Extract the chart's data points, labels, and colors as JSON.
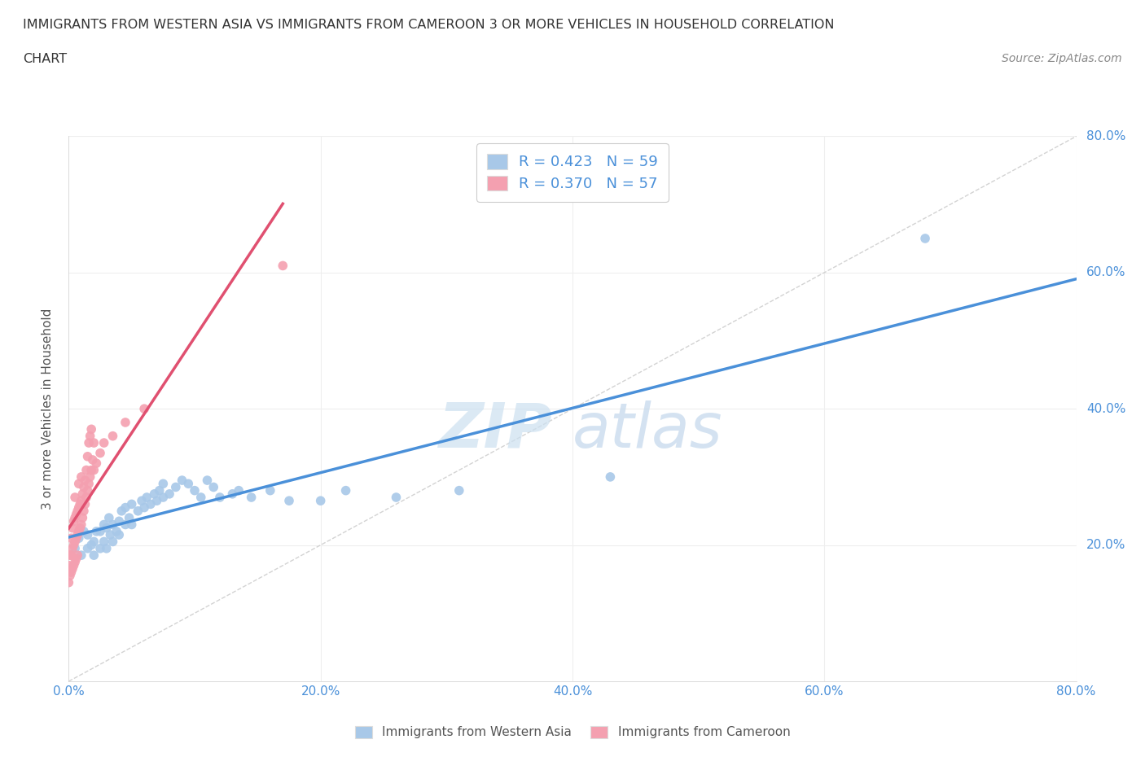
{
  "title_line1": "IMMIGRANTS FROM WESTERN ASIA VS IMMIGRANTS FROM CAMEROON 3 OR MORE VEHICLES IN HOUSEHOLD CORRELATION",
  "title_line2": "CHART",
  "source_text": "Source: ZipAtlas.com",
  "ylabel": "3 or more Vehicles in Household",
  "xlim": [
    0,
    0.8
  ],
  "ylim": [
    0,
    0.8
  ],
  "r_western_asia": 0.423,
  "n_western_asia": 59,
  "r_cameroon": 0.37,
  "n_cameroon": 57,
  "blue_color": "#a8c8e8",
  "blue_line_color": "#4a90d9",
  "pink_color": "#f4a0b0",
  "pink_line_color": "#e05070",
  "diagonal_color": "#c8c8c8",
  "tick_color": "#4a90d9",
  "ylabel_color": "#555555",
  "watermark_zip_color": "#cce0f0",
  "watermark_atlas_color": "#b8d0e8",
  "grid_color": "#eeeeee",
  "title_color": "#333333",
  "source_color": "#888888",
  "legend_text_color": "#4a90d9",
  "bottom_legend_text_color": "#555555",
  "western_asia_x": [
    0.005,
    0.008,
    0.01,
    0.012,
    0.015,
    0.015,
    0.018,
    0.02,
    0.02,
    0.022,
    0.025,
    0.025,
    0.028,
    0.028,
    0.03,
    0.03,
    0.032,
    0.033,
    0.035,
    0.035,
    0.038,
    0.04,
    0.04,
    0.042,
    0.045,
    0.045,
    0.048,
    0.05,
    0.05,
    0.055,
    0.058,
    0.06,
    0.062,
    0.065,
    0.068,
    0.07,
    0.072,
    0.075,
    0.075,
    0.08,
    0.085,
    0.09,
    0.095,
    0.1,
    0.105,
    0.11,
    0.115,
    0.12,
    0.13,
    0.135,
    0.145,
    0.16,
    0.175,
    0.2,
    0.22,
    0.26,
    0.31,
    0.43,
    0.68
  ],
  "western_asia_y": [
    0.195,
    0.21,
    0.185,
    0.22,
    0.195,
    0.215,
    0.2,
    0.185,
    0.205,
    0.22,
    0.195,
    0.22,
    0.205,
    0.23,
    0.195,
    0.225,
    0.24,
    0.215,
    0.205,
    0.23,
    0.22,
    0.215,
    0.235,
    0.25,
    0.23,
    0.255,
    0.24,
    0.23,
    0.26,
    0.25,
    0.265,
    0.255,
    0.27,
    0.26,
    0.275,
    0.265,
    0.28,
    0.27,
    0.29,
    0.275,
    0.285,
    0.295,
    0.29,
    0.28,
    0.27,
    0.295,
    0.285,
    0.27,
    0.275,
    0.28,
    0.27,
    0.28,
    0.265,
    0.265,
    0.28,
    0.27,
    0.28,
    0.3,
    0.65
  ],
  "cameroon_x": [
    0.0,
    0.0,
    0.001,
    0.001,
    0.002,
    0.002,
    0.002,
    0.003,
    0.003,
    0.003,
    0.004,
    0.004,
    0.004,
    0.005,
    0.005,
    0.005,
    0.005,
    0.006,
    0.006,
    0.006,
    0.007,
    0.007,
    0.007,
    0.008,
    0.008,
    0.008,
    0.009,
    0.009,
    0.01,
    0.01,
    0.01,
    0.011,
    0.011,
    0.012,
    0.012,
    0.013,
    0.013,
    0.014,
    0.014,
    0.015,
    0.015,
    0.016,
    0.016,
    0.017,
    0.017,
    0.018,
    0.018,
    0.019,
    0.02,
    0.02,
    0.022,
    0.025,
    0.028,
    0.035,
    0.045,
    0.06,
    0.17
  ],
  "cameroon_y": [
    0.145,
    0.17,
    0.155,
    0.185,
    0.16,
    0.185,
    0.21,
    0.165,
    0.195,
    0.225,
    0.17,
    0.2,
    0.235,
    0.175,
    0.205,
    0.24,
    0.27,
    0.18,
    0.21,
    0.245,
    0.185,
    0.215,
    0.25,
    0.22,
    0.255,
    0.29,
    0.225,
    0.26,
    0.23,
    0.265,
    0.3,
    0.24,
    0.275,
    0.25,
    0.285,
    0.26,
    0.295,
    0.27,
    0.31,
    0.28,
    0.33,
    0.29,
    0.35,
    0.3,
    0.36,
    0.31,
    0.37,
    0.325,
    0.31,
    0.35,
    0.32,
    0.335,
    0.35,
    0.36,
    0.38,
    0.4,
    0.61
  ]
}
